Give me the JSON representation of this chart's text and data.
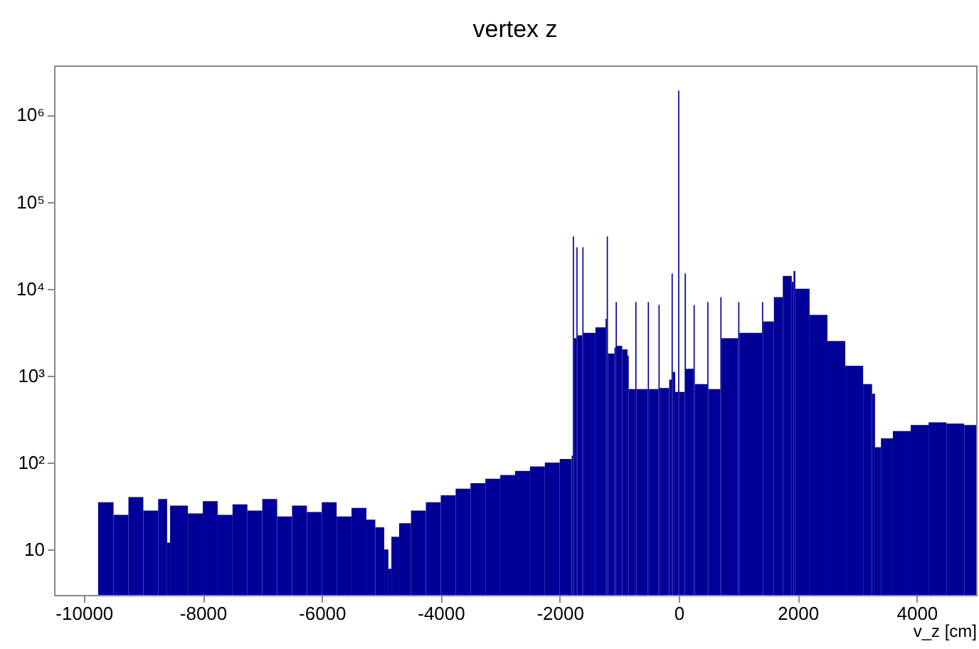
{
  "chart_data": {
    "type": "histogram",
    "title": "vertex z",
    "xlabel": "v_z [cm]",
    "color": "#000099",
    "log": "y",
    "grid": false,
    "xlim": [
      -10500,
      5000
    ],
    "xticks": [
      -10000,
      -8000,
      -6000,
      -4000,
      -2000,
      0,
      2000,
      4000
    ],
    "ylim": [
      3,
      3700000
    ],
    "yticks": [
      10,
      {
        "value": 100,
        "label": "10²"
      },
      {
        "value": 1000,
        "label": "10³"
      },
      {
        "value": 10000,
        "label": "10⁴"
      },
      {
        "value": 100000,
        "label": "10⁵"
      },
      {
        "value": 1000000,
        "label": "10⁶"
      }
    ],
    "bins": [
      -9760,
      -9500,
      -9250,
      -9000,
      -8750,
      -8600,
      -8550,
      -8250,
      -8000,
      -7750,
      -7500,
      -7250,
      -7000,
      -6750,
      -6500,
      -6250,
      -6000,
      -5750,
      -5500,
      -5250,
      -5100,
      -4950,
      -4880,
      -4830,
      -4700,
      -4500,
      -4250,
      -4000,
      -3750,
      -3500,
      -3250,
      -3000,
      -2750,
      -2500,
      -2250,
      -2000,
      -1800,
      -1780,
      -1760,
      -1720,
      -1700,
      -1620,
      -1600,
      -1400,
      -1230,
      -1210,
      -1190,
      -1080,
      -1060,
      -1040,
      -950,
      -860,
      -840,
      -730,
      -710,
      -520,
      -500,
      -340,
      -320,
      -160,
      -120,
      -100,
      -60,
      -10,
      10,
      100,
      120,
      250,
      270,
      480,
      500,
      700,
      720,
      1000,
      1020,
      1400,
      1420,
      1600,
      1750,
      1900,
      1930,
      1960,
      2200,
      2500,
      2800,
      3100,
      3250,
      3300,
      3400,
      3600,
      3900,
      4200,
      4500,
      4800,
      5000
    ],
    "values": [
      35,
      25,
      40,
      28,
      38,
      12,
      32,
      26,
      36,
      25,
      33,
      28,
      38,
      24,
      32,
      27,
      35,
      24,
      30,
      22,
      18,
      10,
      6,
      14,
      20,
      28,
      35,
      42,
      50,
      58,
      65,
      72,
      80,
      90,
      100,
      110,
      120,
      40000,
      2700,
      30000,
      2900,
      30000,
      3100,
      3600,
      4500,
      40000,
      1800,
      2100,
      7000,
      2200,
      2000,
      1700,
      700,
      7000,
      700,
      7000,
      700,
      6500,
      720,
      900,
      15000,
      1100,
      650,
      1900000,
      650,
      15000,
      1200,
      6500,
      800,
      7000,
      700,
      8000,
      2700,
      7000,
      3100,
      7000,
      4200,
      8000,
      14000,
      12000,
      16000,
      10000,
      5000,
      2500,
      1300,
      800,
      620,
      150,
      190,
      230,
      270,
      290,
      280,
      270
    ]
  }
}
